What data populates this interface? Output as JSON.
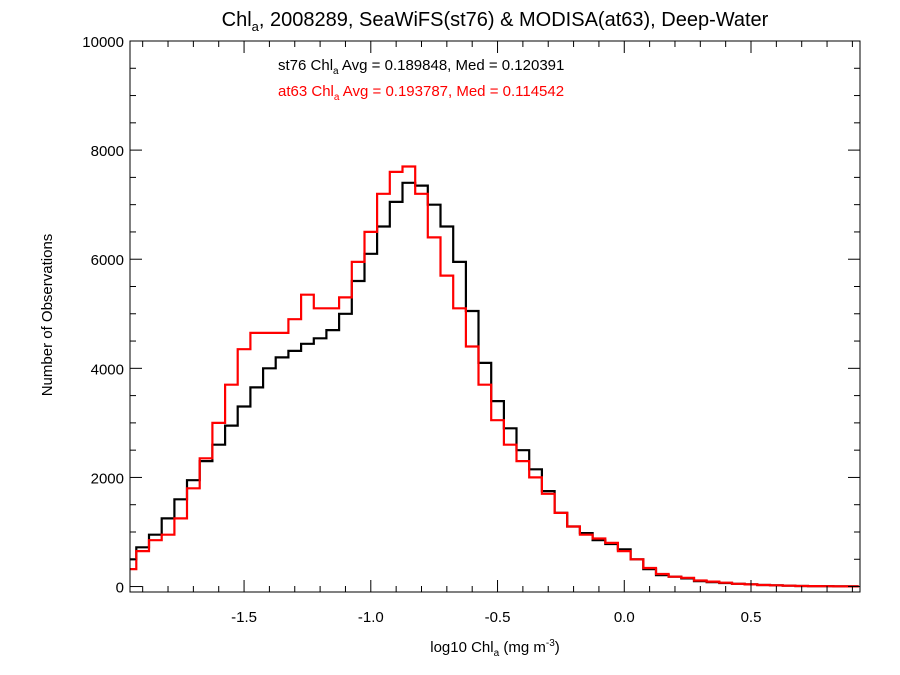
{
  "colors": {
    "st76": "#000000",
    "at63": "#ff0000",
    "axis": "#000000",
    "background": "#ffffff"
  },
  "chart_data": {
    "type": "line",
    "title": {
      "main": "Chl",
      "sub": "a",
      "rest": ", 2008289, SeaWiFS(st76) & MODISA(at63), Deep-Water"
    },
    "xlabel": {
      "main": "log10 Chl",
      "sub": "a",
      "rest": " (mg m",
      "sup": "-3",
      "end": ")"
    },
    "ylabel": "Number of Observations",
    "xlim": [
      -1.95,
      0.93
    ],
    "ylim": [
      -100,
      10000
    ],
    "x_ticks": [
      -1.5,
      -1.0,
      -0.5,
      0.0,
      0.5
    ],
    "x_tick_labels": [
      "-1.5",
      "-1.0",
      "-0.5",
      "0.0",
      "0.5"
    ],
    "y_ticks": [
      0,
      2000,
      4000,
      6000,
      8000,
      10000
    ],
    "y_tick_labels": [
      "0",
      "2000",
      "4000",
      "6000",
      "8000",
      "10000"
    ],
    "grid": false,
    "legend_placement": "top-center",
    "series": [
      {
        "name": "st76",
        "stats": {
          "prefix": "st76 Chl",
          "sub": "a",
          "text": " Avg = 0.189848, Med = 0.120391"
        },
        "x": [
          -1.95,
          -1.9,
          -1.85,
          -1.8,
          -1.75,
          -1.7,
          -1.65,
          -1.6,
          -1.55,
          -1.5,
          -1.45,
          -1.4,
          -1.35,
          -1.3,
          -1.25,
          -1.2,
          -1.15,
          -1.1,
          -1.05,
          -1.0,
          -0.95,
          -0.9,
          -0.85,
          -0.8,
          -0.75,
          -0.7,
          -0.65,
          -0.6,
          -0.55,
          -0.5,
          -0.45,
          -0.4,
          -0.35,
          -0.3,
          -0.25,
          -0.2,
          -0.15,
          -0.1,
          -0.05,
          0.0,
          0.05,
          0.1,
          0.15,
          0.2,
          0.25,
          0.3,
          0.35,
          0.4,
          0.45,
          0.5,
          0.55,
          0.6,
          0.65,
          0.7,
          0.75,
          0.8,
          0.85,
          0.9
        ],
        "values": [
          500,
          720,
          950,
          1250,
          1600,
          1950,
          2300,
          2600,
          2950,
          3300,
          3650,
          4000,
          4200,
          4320,
          4450,
          4550,
          4700,
          5000,
          5600,
          6100,
          6600,
          7050,
          7400,
          7350,
          7000,
          6600,
          5950,
          5050,
          4100,
          3400,
          2900,
          2500,
          2150,
          1750,
          1350,
          1100,
          980,
          850,
          780,
          680,
          500,
          320,
          210,
          180,
          150,
          100,
          80,
          65,
          50,
          40,
          28,
          22,
          15,
          10,
          8,
          6,
          5,
          3
        ]
      },
      {
        "name": "at63",
        "stats": {
          "prefix": "at63 Chl",
          "sub": "a",
          "text": " Avg = 0.193787, Med = 0.114542"
        },
        "x": [
          -1.95,
          -1.9,
          -1.85,
          -1.8,
          -1.75,
          -1.7,
          -1.65,
          -1.6,
          -1.55,
          -1.5,
          -1.45,
          -1.4,
          -1.35,
          -1.3,
          -1.25,
          -1.2,
          -1.15,
          -1.1,
          -1.05,
          -1.0,
          -0.95,
          -0.9,
          -0.85,
          -0.8,
          -0.75,
          -0.7,
          -0.65,
          -0.6,
          -0.55,
          -0.5,
          -0.45,
          -0.4,
          -0.35,
          -0.3,
          -0.25,
          -0.2,
          -0.15,
          -0.1,
          -0.05,
          0.0,
          0.05,
          0.1,
          0.15,
          0.2,
          0.25,
          0.3,
          0.35,
          0.4,
          0.45,
          0.5,
          0.55,
          0.6,
          0.65,
          0.7,
          0.75,
          0.8,
          0.85,
          0.9
        ],
        "values": [
          320,
          650,
          850,
          950,
          1250,
          1800,
          2350,
          3000,
          3700,
          4350,
          4650,
          4650,
          4650,
          4900,
          5350,
          5100,
          5100,
          5300,
          5950,
          6500,
          7200,
          7600,
          7700,
          7200,
          6400,
          5700,
          5100,
          4400,
          3700,
          3050,
          2600,
          2300,
          2000,
          1700,
          1350,
          1100,
          950,
          880,
          800,
          650,
          500,
          340,
          230,
          180,
          160,
          110,
          90,
          70,
          50,
          40,
          28,
          22,
          15,
          10,
          8,
          6,
          5,
          3
        ]
      }
    ]
  }
}
